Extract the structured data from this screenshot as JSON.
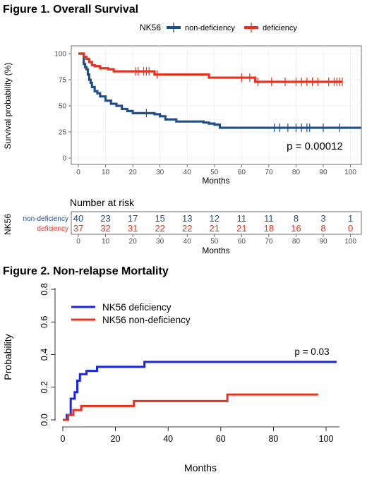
{
  "colors": {
    "non_deficiency": "#1f4e8c",
    "deficiency": "#e8321e",
    "f2_deficiency": "#1a23e8",
    "f2_non_deficiency": "#e8321e"
  },
  "figure1": {
    "title": "Figure 1. Overall Survival",
    "legend_title": "NK56",
    "pvalue": "p = 0.00012",
    "risk_title": "Number at risk",
    "risk_ylabel": "NK56",
    "chart_data": {
      "type": "line",
      "title": "Figure 1. Overall Survival",
      "xlabel": "Months",
      "ylabel": "Survival probability (%)",
      "xlim": [
        0,
        104
      ],
      "ylim": [
        0,
        100
      ],
      "xticks": [
        0,
        10,
        20,
        30,
        40,
        50,
        60,
        70,
        80,
        90,
        100
      ],
      "yticks": [
        0,
        25,
        50,
        75,
        100
      ],
      "grid": true,
      "legend_position": "top",
      "series": [
        {
          "name": "non-deficiency",
          "color": "#1f4e8c",
          "step_x": [
            0,
            2,
            2.5,
            3,
            3.5,
            4,
            4.5,
            5,
            6,
            7,
            8,
            10,
            12,
            14,
            16,
            18,
            20,
            22,
            24,
            26,
            28,
            30,
            32,
            36,
            40,
            46,
            48,
            50,
            52,
            104
          ],
          "step_y": [
            100,
            90,
            87,
            85,
            80,
            75,
            72,
            68,
            64,
            62,
            59,
            55,
            52,
            50,
            47,
            45,
            43,
            43,
            43,
            43,
            42,
            40,
            37,
            35,
            35,
            34,
            33,
            32,
            29,
            29
          ],
          "censor_x": [
            25,
            72,
            74,
            77,
            80,
            82,
            84,
            85,
            90,
            96
          ]
        },
        {
          "name": "deficiency",
          "color": "#e8321e",
          "step_x": [
            0,
            2,
            3,
            4,
            5,
            6,
            8,
            9,
            11,
            13,
            28,
            35,
            48,
            65,
            97
          ],
          "step_y": [
            100,
            97,
            95,
            92,
            89,
            88,
            86,
            86,
            85,
            83,
            80,
            80,
            77,
            73,
            73
          ],
          "censor_x": [
            21,
            22,
            24,
            25,
            26,
            29,
            60,
            63,
            66,
            71,
            76,
            80,
            82,
            84,
            86,
            88,
            92,
            94,
            95,
            96,
            97
          ]
        }
      ]
    },
    "risk_table": {
      "xlabel": "Months",
      "months": [
        0,
        10,
        20,
        30,
        40,
        50,
        60,
        70,
        80,
        90,
        100
      ],
      "rows": [
        {
          "label": "non-deficiency",
          "color": "#1f4e8c",
          "values": [
            40,
            23,
            17,
            15,
            13,
            12,
            11,
            11,
            8,
            3,
            1
          ]
        },
        {
          "label": "deficiency",
          "color": "#e8321e",
          "values": [
            37,
            32,
            31,
            22,
            22,
            21,
            21,
            18,
            16,
            8,
            0
          ]
        }
      ]
    }
  },
  "figure2": {
    "title": "Figure 2. Non-relapse Mortality",
    "pvalue": "p = 0.03",
    "chart_data": {
      "type": "line",
      "title": "Figure 2. Non-relapse Mortality",
      "xlabel": "Months",
      "ylabel": "Probability",
      "xlim": [
        0,
        104
      ],
      "ylim": [
        0,
        0.8
      ],
      "xticks": [
        0,
        20,
        40,
        60,
        80,
        100
      ],
      "yticks": [
        0.0,
        0.2,
        0.4,
        0.6,
        0.8
      ],
      "ytick_labels": [
        "0.0",
        "0.2",
        "0.4",
        "0.6",
        "0.8"
      ],
      "grid": false,
      "legend_position": "top-left",
      "series": [
        {
          "name": "NK56 deficiency",
          "color": "#1a23e8",
          "step_x": [
            0,
            1.5,
            3,
            4.5,
            5.5,
            6.5,
            9,
            13,
            31,
            104
          ],
          "step_y": [
            0,
            0.03,
            0.13,
            0.17,
            0.24,
            0.28,
            0.3,
            0.325,
            0.355,
            0.355
          ]
        },
        {
          "name": "NK56 non-deficiency",
          "color": "#e8321e",
          "step_x": [
            0,
            2,
            4,
            7,
            27,
            62.5,
            97
          ],
          "step_y": [
            0,
            0.03,
            0.06,
            0.085,
            0.115,
            0.155,
            0.155
          ]
        }
      ]
    }
  }
}
